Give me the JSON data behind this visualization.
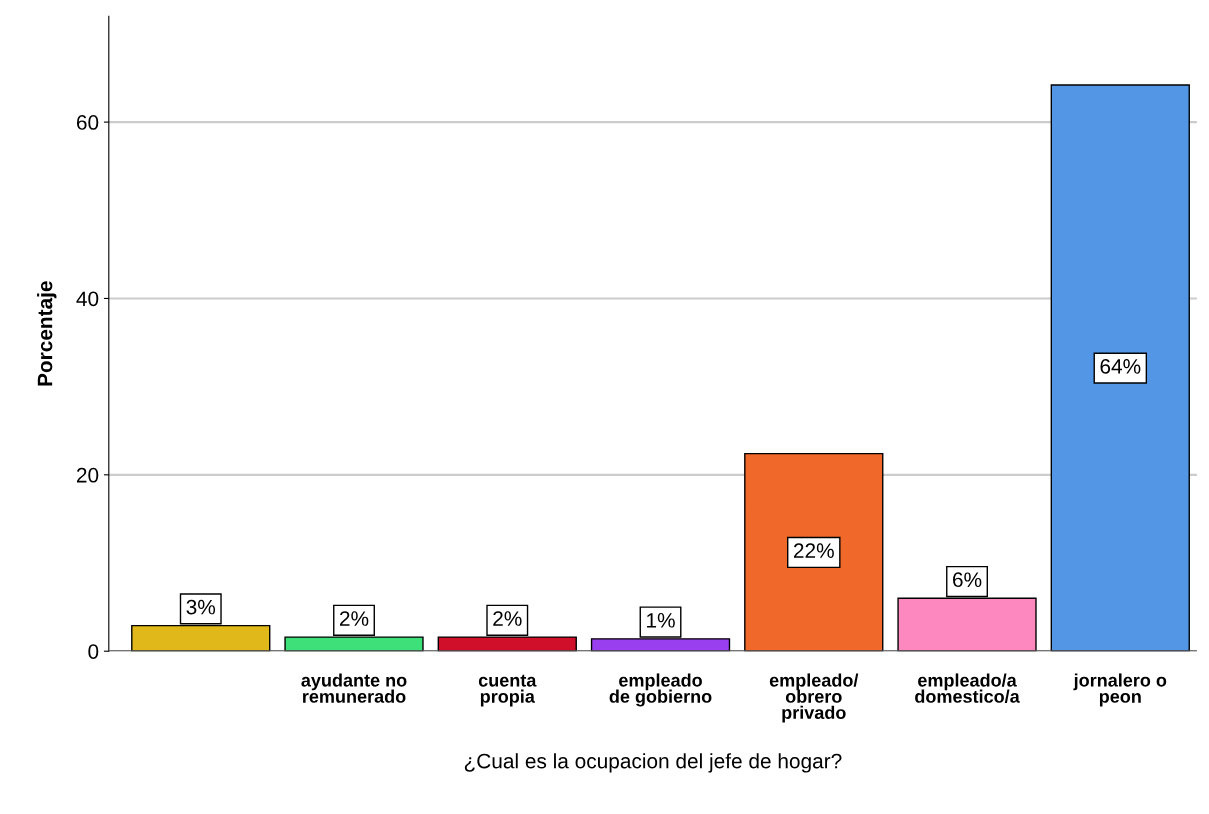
{
  "chart_data": {
    "type": "bar",
    "xlabel": "¿Cual es la ocupacion del jefe de hogar?",
    "ylabel": "Porcentaje",
    "categories": [
      null,
      "ayudante no\nremunerado",
      "cuenta\npropia",
      "empleado\nde gobierno",
      "empleado/\nobrero\nprivado",
      "empleado/a\ndomestico/a",
      "jornalero o\npeon"
    ],
    "values": [
      2.9,
      1.6,
      1.6,
      1.4,
      22.4,
      6.0,
      64.2
    ],
    "value_labels": [
      "3%",
      "2%",
      "2%",
      "1%",
      "22%",
      "6%",
      "64%"
    ],
    "colors": [
      "#e0b81a",
      "#3ee07a",
      "#d0102a",
      "#9a3ff0",
      "#f0682a",
      "#fd88c0",
      "#5496e6"
    ],
    "ylim": [
      0,
      72
    ],
    "yticks": [
      0,
      20,
      40,
      60
    ],
    "grid": "y"
  }
}
